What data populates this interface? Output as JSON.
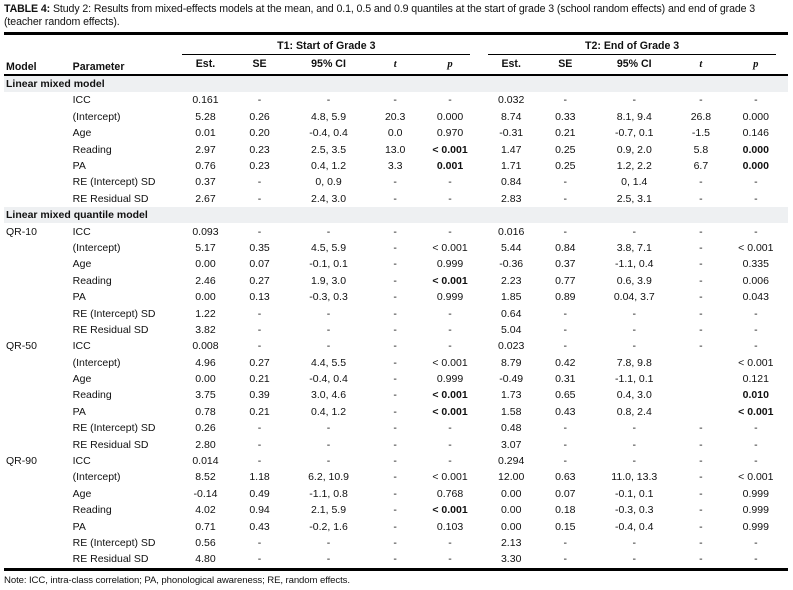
{
  "title": {
    "label": "TABLE 4:",
    "text": "Study 2: Results from mixed-effects models at the mean, and 0.1, 0.5 and 0.9 quantiles at the start of grade 3 (school random effects) and end of grade 3 (teacher random effects)."
  },
  "columns": {
    "model": "Model",
    "parameter": "Parameter",
    "t1": "T1: Start of Grade 3",
    "t2": "T2: End of Grade 3",
    "sub": [
      "Est.",
      "SE",
      "95% CI",
      "t",
      "p"
    ]
  },
  "colors": {
    "rule": "#000000",
    "section_row_bg": "#eef0f2",
    "text": "#111111"
  },
  "note": "Note: ICC, intra-class correlation; PA, phonological awareness; RE, random effects.",
  "rows": [
    {
      "section": "Linear mixed model"
    },
    {
      "m": "",
      "p": "ICC",
      "c": [
        "0.161",
        "-",
        "-",
        "-",
        "-",
        "0.032",
        "-",
        "-",
        "-",
        "-"
      ],
      "b": []
    },
    {
      "m": "",
      "p": "(Intercept)",
      "c": [
        "5.28",
        "0.26",
        "4.8, 5.9",
        "20.3",
        "0.000",
        "8.74",
        "0.33",
        "8.1, 9.4",
        "26.8",
        "0.000"
      ],
      "b": []
    },
    {
      "m": "",
      "p": "Age",
      "c": [
        "0.01",
        "0.20",
        "-0.4, 0.4",
        "0.0",
        "0.970",
        "-0.31",
        "0.21",
        "-0.7, 0.1",
        "-1.5",
        "0.146"
      ],
      "b": []
    },
    {
      "m": "",
      "p": "Reading",
      "c": [
        "2.97",
        "0.23",
        "2.5, 3.5",
        "13.0",
        "< 0.001",
        "1.47",
        "0.25",
        "0.9, 2.0",
        "5.8",
        "0.000"
      ],
      "b": [
        4,
        9
      ]
    },
    {
      "m": "",
      "p": "PA",
      "c": [
        "0.76",
        "0.23",
        "0.4, 1.2",
        "3.3",
        "0.001",
        "1.71",
        "0.25",
        "1.2, 2.2",
        "6.7",
        "0.000"
      ],
      "b": [
        4,
        9
      ]
    },
    {
      "m": "",
      "p": "RE (Intercept) SD",
      "c": [
        "0.37",
        "-",
        "0, 0.9",
        "-",
        "-",
        "0.84",
        "-",
        "0, 1.4",
        "-",
        "-"
      ],
      "b": []
    },
    {
      "m": "",
      "p": "RE Residual SD",
      "c": [
        "2.67",
        "-",
        "2.4, 3.0",
        "-",
        "-",
        "2.83",
        "-",
        "2.5, 3.1",
        "-",
        "-"
      ],
      "b": []
    },
    {
      "section": "Linear mixed quantile model"
    },
    {
      "m": "QR-10",
      "p": "ICC",
      "c": [
        "0.093",
        "-",
        "-",
        "-",
        "-",
        "0.016",
        "-",
        "-",
        "-",
        "-"
      ],
      "b": []
    },
    {
      "m": "",
      "p": "(Intercept)",
      "c": [
        "5.17",
        "0.35",
        "4.5, 5.9",
        "-",
        "< 0.001",
        "5.44",
        "0.84",
        "3.8, 7.1",
        "-",
        "< 0.001"
      ],
      "b": []
    },
    {
      "m": "",
      "p": "Age",
      "c": [
        "0.00",
        "0.07",
        "-0.1, 0.1",
        "-",
        "0.999",
        "-0.36",
        "0.37",
        "-1.1, 0.4",
        "-",
        "0.335"
      ],
      "b": []
    },
    {
      "m": "",
      "p": "Reading",
      "c": [
        "2.46",
        "0.27",
        "1.9, 3.0",
        "-",
        "< 0.001",
        "2.23",
        "0.77",
        "0.6, 3.9",
        "-",
        "0.006"
      ],
      "b": [
        4
      ]
    },
    {
      "m": "",
      "p": "PA",
      "c": [
        "0.00",
        "0.13",
        "-0.3, 0.3",
        "-",
        "0.999",
        "1.85",
        "0.89",
        "0.04, 3.7",
        "-",
        "0.043"
      ],
      "b": []
    },
    {
      "m": "",
      "p": "RE (Intercept) SD",
      "c": [
        "1.22",
        "-",
        "-",
        "-",
        "-",
        "0.64",
        "-",
        "-",
        "-",
        "-"
      ],
      "b": []
    },
    {
      "m": "",
      "p": "RE Residual SD",
      "c": [
        "3.82",
        "-",
        "-",
        "-",
        "-",
        "5.04",
        "-",
        "-",
        "-",
        "-"
      ],
      "b": []
    },
    {
      "m": "QR-50",
      "p": "ICC",
      "c": [
        "0.008",
        "-",
        "-",
        "-",
        "-",
        "0.023",
        "-",
        "-",
        "-",
        "-"
      ],
      "b": []
    },
    {
      "m": "",
      "p": "(Intercept)",
      "c": [
        "4.96",
        "0.27",
        "4.4, 5.5",
        "-",
        "< 0.001",
        "8.79",
        "0.42",
        "7.8, 9.8",
        "",
        "< 0.001"
      ],
      "b": []
    },
    {
      "m": "",
      "p": "Age",
      "c": [
        "0.00",
        "0.21",
        "-0.4, 0.4",
        "-",
        "0.999",
        "-0.49",
        "0.31",
        "-1.1, 0.1",
        "",
        "0.121"
      ],
      "b": []
    },
    {
      "m": "",
      "p": "Reading",
      "c": [
        "3.75",
        "0.39",
        "3.0, 4.6",
        "-",
        "< 0.001",
        "1.73",
        "0.65",
        "0.4, 3.0",
        "",
        "0.010"
      ],
      "b": [
        4,
        9
      ]
    },
    {
      "m": "",
      "p": "PA",
      "c": [
        "0.78",
        "0.21",
        "0.4, 1.2",
        "-",
        "< 0.001",
        "1.58",
        "0.43",
        "0.8, 2.4",
        "",
        "< 0.001"
      ],
      "b": [
        4,
        9
      ]
    },
    {
      "m": "",
      "p": "RE (Intercept) SD",
      "c": [
        "0.26",
        "-",
        "-",
        "-",
        "-",
        "0.48",
        "-",
        "-",
        "-",
        "-"
      ],
      "b": []
    },
    {
      "m": "",
      "p": "RE Residual SD",
      "c": [
        "2.80",
        "-",
        "-",
        "-",
        "-",
        "3.07",
        "-",
        "-",
        "-",
        "-"
      ],
      "b": []
    },
    {
      "m": "QR-90",
      "p": "ICC",
      "c": [
        "0.014",
        "-",
        "-",
        "-",
        "-",
        "0.294",
        "-",
        "-",
        "-",
        "-"
      ],
      "b": []
    },
    {
      "m": "",
      "p": "(Intercept)",
      "c": [
        "8.52",
        "1.18",
        "6.2, 10.9",
        "-",
        "< 0.001",
        "12.00",
        "0.63",
        "11.0, 13.3",
        "-",
        "< 0.001"
      ],
      "b": []
    },
    {
      "m": "",
      "p": "Age",
      "c": [
        "-0.14",
        "0.49",
        "-1.1, 0.8",
        "-",
        "0.768",
        "0.00",
        "0.07",
        "-0.1, 0.1",
        "-",
        "0.999"
      ],
      "b": []
    },
    {
      "m": "",
      "p": "Reading",
      "c": [
        "4.02",
        "0.94",
        "2.1, 5.9",
        "-",
        "< 0.001",
        "0.00",
        "0.18",
        "-0.3, 0.3",
        "-",
        "0.999"
      ],
      "b": [
        4
      ]
    },
    {
      "m": "",
      "p": "PA",
      "c": [
        "0.71",
        "0.43",
        "-0.2, 1.6",
        "-",
        "0.103",
        "0.00",
        "0.15",
        "-0.4, 0.4",
        "-",
        "0.999"
      ],
      "b": []
    },
    {
      "m": "",
      "p": "RE (Intercept) SD",
      "c": [
        "0.56",
        "-",
        "-",
        "-",
        "-",
        "2.13",
        "-",
        "-",
        "-",
        "-"
      ],
      "b": []
    },
    {
      "m": "",
      "p": "RE Residual SD",
      "c": [
        "4.80",
        "-",
        "-",
        "-",
        "-",
        "3.30",
        "-",
        "-",
        "-",
        "-"
      ],
      "b": []
    }
  ]
}
